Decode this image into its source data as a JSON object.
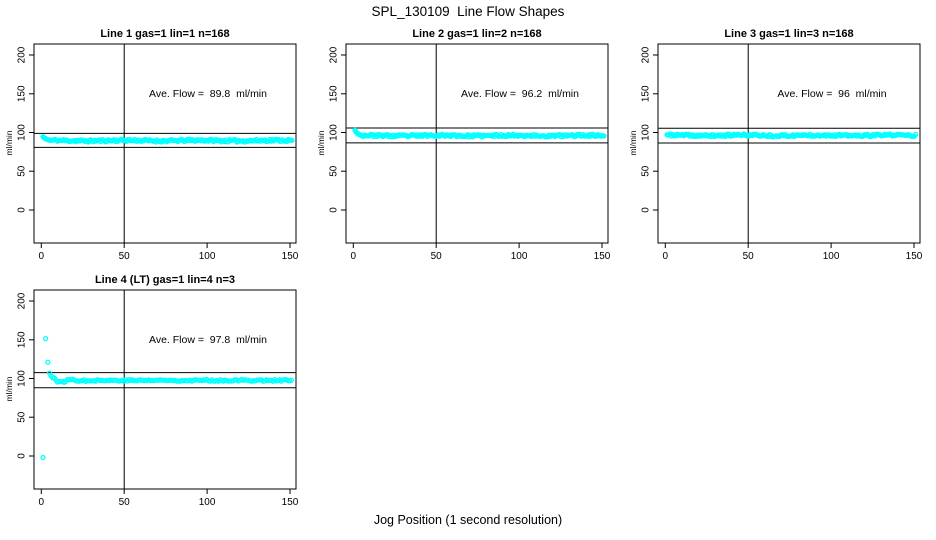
{
  "window": {
    "main_title": "SPL_130109  Line Flow Shapes",
    "x_axis_caption": "Jog Position (1 second resolution)",
    "background_color": "#ffffff",
    "axis_color": "#000000",
    "point_color": "#00ffff"
  },
  "chart_data": [
    {
      "type": "scatter",
      "title": "Line 1 gas=1 lin=1 n=168",
      "ylabel": "ml/min",
      "annotation": "Ave. Flow =  89.8  ml/min",
      "ave_flow_ml_min": 89.8,
      "n": 168,
      "xlim": [
        -4.4,
        153.6
      ],
      "ylim": [
        -42.6,
        214.2
      ],
      "x_ticks": [
        0,
        50,
        100,
        150
      ],
      "y_ticks": [
        0,
        50,
        100,
        150,
        200
      ],
      "x_tick_labels": [
        "0",
        "50",
        "100",
        "150"
      ],
      "y_tick_labels": [
        "0",
        "50",
        "100",
        "150",
        "200"
      ],
      "vline_x": 50,
      "hlines_y": [
        98.8,
        80.8
      ],
      "series": {
        "anchors": [
          [
            1,
            94.5
          ],
          [
            1.4,
            93.8
          ],
          [
            1.8,
            93.1
          ],
          [
            2.3,
            92.4
          ],
          [
            2.8,
            91.8
          ],
          [
            3.4,
            91.2
          ],
          [
            4.1,
            90.7
          ],
          [
            4.8,
            90.2
          ]
        ],
        "band": {
          "x_start": 5.4,
          "x_end": 151.5,
          "step": 0.74,
          "mean": 89.6,
          "noise": 1.6,
          "wobble_amp": 0.4,
          "wobble_period": 45,
          "wobble_decay": 9999,
          "seed": 11
        }
      }
    },
    {
      "type": "scatter",
      "title": "Line 2 gas=1 lin=2 n=168",
      "ylabel": "ml/min",
      "annotation": "Ave. Flow =  96.2  ml/min",
      "ave_flow_ml_min": 96.2,
      "n": 168,
      "xlim": [
        -4.4,
        153.6
      ],
      "ylim": [
        -42.6,
        214.2
      ],
      "x_ticks": [
        0,
        50,
        100,
        150
      ],
      "y_ticks": [
        0,
        50,
        100,
        150,
        200
      ],
      "x_tick_labels": [
        "0",
        "50",
        "100",
        "150"
      ],
      "y_tick_labels": [
        "0",
        "50",
        "100",
        "150",
        "200"
      ],
      "vline_x": 50,
      "hlines_y": [
        105.8,
        86.6
      ],
      "series": {
        "anchors": [
          [
            1,
            103
          ],
          [
            1.4,
            101.6
          ],
          [
            1.8,
            100.3
          ],
          [
            2.3,
            99.2
          ],
          [
            2.8,
            98.3
          ],
          [
            3.4,
            97.6
          ],
          [
            4.1,
            97
          ],
          [
            4.8,
            96.6
          ]
        ],
        "band": {
          "x_start": 5.4,
          "x_end": 151.5,
          "step": 0.74,
          "mean": 96.0,
          "noise": 1.5,
          "wobble_amp": 0.4,
          "wobble_period": 45,
          "wobble_decay": 9999,
          "seed": 23
        }
      }
    },
    {
      "type": "scatter",
      "title": "Line 3 gas=1 lin=3 n=168",
      "ylabel": "ml/min",
      "annotation": "Ave. Flow =  96  ml/min",
      "ave_flow_ml_min": 96,
      "n": 168,
      "xlim": [
        -4.4,
        153.6
      ],
      "ylim": [
        -42.6,
        214.2
      ],
      "x_ticks": [
        0,
        50,
        100,
        150
      ],
      "y_ticks": [
        0,
        50,
        100,
        150,
        200
      ],
      "x_tick_labels": [
        "0",
        "50",
        "100",
        "150"
      ],
      "y_tick_labels": [
        "0",
        "50",
        "100",
        "150",
        "200"
      ],
      "vline_x": 50,
      "hlines_y": [
        105.6,
        86.4
      ],
      "series": {
        "anchors": [
          [
            1,
            97.2
          ],
          [
            1.7,
            96.8
          ]
        ],
        "band": {
          "x_start": 2.2,
          "x_end": 151.5,
          "step": 0.74,
          "mean": 96.3,
          "noise": 1.5,
          "wobble_amp": 0.4,
          "wobble_period": 45,
          "wobble_decay": 9999,
          "seed": 37
        }
      }
    },
    {
      "type": "scatter",
      "title": "Line 4 (LT) gas=1 lin=4 n=3",
      "ylabel": "ml/min",
      "annotation": "Ave. Flow =  97.8  ml/min",
      "ave_flow_ml_min": 97.8,
      "n": 3,
      "xlim": [
        -4.4,
        153.6
      ],
      "ylim": [
        -42.6,
        214.2
      ],
      "x_ticks": [
        0,
        50,
        100,
        150
      ],
      "y_ticks": [
        0,
        50,
        100,
        150,
        200
      ],
      "x_tick_labels": [
        "0",
        "50",
        "100",
        "150"
      ],
      "y_tick_labels": [
        "0",
        "50",
        "100",
        "150",
        "200"
      ],
      "vline_x": 50,
      "hlines_y": [
        107.6,
        88.0
      ],
      "series": {
        "anchors": [
          [
            1,
            -2
          ],
          [
            2.6,
            151.5
          ],
          [
            4,
            121
          ],
          [
            5,
            107
          ]
        ],
        "band": {
          "x_start": 5.8,
          "x_end": 151,
          "step": 1.0,
          "mean": 97.6,
          "noise": 1.2,
          "wobble_amp": 6,
          "wobble_period": 13,
          "wobble_decay": 7,
          "seed": 77
        }
      }
    }
  ]
}
